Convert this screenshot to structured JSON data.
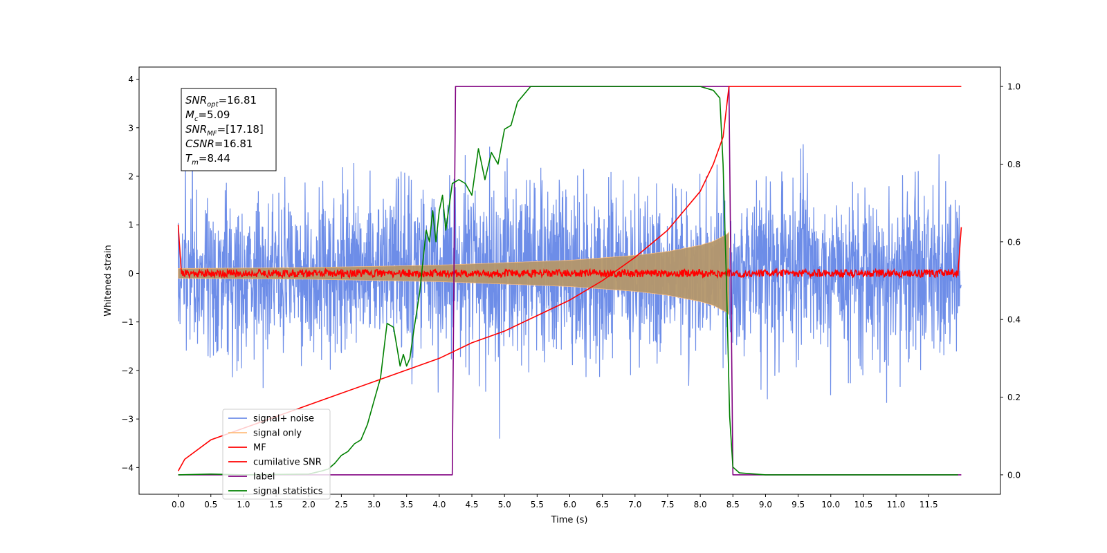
{
  "chart_data": {
    "type": "line",
    "xlabel": "Time (s)",
    "ylabel": "Whitened strain",
    "xlim": [
      -0.6,
      12.6
    ],
    "ylim": [
      -4.55,
      4.25
    ],
    "y2lim": [
      -0.05,
      1.05
    ],
    "x_ticks": [
      0.0,
      0.5,
      1.0,
      1.5,
      2.0,
      2.5,
      3.0,
      3.5,
      4.0,
      4.5,
      5.0,
      5.5,
      6.0,
      6.5,
      7.0,
      7.5,
      8.0,
      8.5,
      9.0,
      9.5,
      10.0,
      10.5,
      11.0,
      11.5
    ],
    "x_tick_labels": [
      "0.0",
      "0.5",
      "1.0",
      "1.5",
      "2.0",
      "2.5",
      "3.0",
      "3.5",
      "4.0",
      "4.5",
      "5.0",
      "5.5",
      "6.0",
      "6.5",
      "7.0",
      "7.5",
      "8.0",
      "8.5",
      "9.0",
      "9.5",
      "10.0",
      "10.5",
      "11.0",
      "11.5"
    ],
    "y_ticks": [
      4,
      3,
      2,
      1,
      0,
      -1,
      -2,
      -3,
      -4
    ],
    "y_tick_labels": [
      "4",
      "3",
      "2",
      "1",
      "0",
      "−1",
      "−2",
      "−3",
      "−4"
    ],
    "y2_ticks": [
      1.0,
      0.8,
      0.6,
      0.4,
      0.2,
      0.0
    ],
    "y2_tick_labels": [
      "1.0",
      "0.8",
      "0.6",
      "0.4",
      "0.2",
      "0.0"
    ],
    "grid": false,
    "legend_position": "lower-left",
    "annotation_lines": [
      {
        "sym": "SNR",
        "sub": "opt",
        "rest": "=16.81"
      },
      {
        "sym": "M",
        "sub": "c",
        "rest": "=5.09"
      },
      {
        "sym": "SNR",
        "sub": "MF",
        "rest": "=[17.18]"
      },
      {
        "sym": "CSNR",
        "sub": "",
        "rest": "=16.81"
      },
      {
        "sym": "T",
        "sub": "m",
        "rest": "=8.44"
      }
    ],
    "series": [
      {
        "name": "signal+ noise",
        "color": "#6d8de8",
        "axis": "left",
        "noise_amplitude": 1.6,
        "t_range": [
          0.0,
          12.0
        ]
      },
      {
        "name": "signal only",
        "color": "#ffbe7f",
        "axis": "left",
        "envelope": [
          [
            0.0,
            0.1
          ],
          [
            2.0,
            0.12
          ],
          [
            4.0,
            0.17
          ],
          [
            6.0,
            0.27
          ],
          [
            7.0,
            0.37
          ],
          [
            7.5,
            0.45
          ],
          [
            8.0,
            0.58
          ],
          [
            8.2,
            0.66
          ],
          [
            8.4,
            0.8
          ],
          [
            8.44,
            0.85
          ]
        ]
      },
      {
        "name": "MF",
        "color": "#ff0000",
        "axis": "left",
        "baseline": 0.0,
        "ripple": 0.08,
        "start_value": 1.0,
        "end_value": 0.95,
        "t_range": [
          0.0,
          12.0
        ]
      },
      {
        "name": "cumilative SNR",
        "color": "#ff0000",
        "axis": "right",
        "points": [
          [
            0.0,
            0.01
          ],
          [
            0.1,
            0.04
          ],
          [
            0.5,
            0.09
          ],
          [
            1.0,
            0.12
          ],
          [
            1.5,
            0.15
          ],
          [
            2.0,
            0.18
          ],
          [
            2.5,
            0.21
          ],
          [
            3.0,
            0.24
          ],
          [
            3.5,
            0.27
          ],
          [
            4.0,
            0.3
          ],
          [
            4.5,
            0.34
          ],
          [
            5.0,
            0.37
          ],
          [
            5.5,
            0.41
          ],
          [
            6.0,
            0.45
          ],
          [
            6.5,
            0.5
          ],
          [
            7.0,
            0.56
          ],
          [
            7.5,
            0.63
          ],
          [
            8.0,
            0.73
          ],
          [
            8.2,
            0.8
          ],
          [
            8.35,
            0.87
          ],
          [
            8.44,
            1.0
          ],
          [
            12.0,
            1.0
          ]
        ]
      },
      {
        "name": "label",
        "color": "#800080",
        "axis": "right",
        "points": [
          [
            0.0,
            0.0
          ],
          [
            4.2,
            0.0
          ],
          [
            4.25,
            1.0
          ],
          [
            8.44,
            1.0
          ],
          [
            8.5,
            0.0
          ],
          [
            12.0,
            0.0
          ]
        ]
      },
      {
        "name": "signal statistics",
        "color": "#008000",
        "axis": "right",
        "points": [
          [
            0.0,
            0.0
          ],
          [
            0.5,
            0.002
          ],
          [
            1.0,
            0.0
          ],
          [
            1.5,
            0.001
          ],
          [
            2.0,
            0.002
          ],
          [
            2.2,
            0.01
          ],
          [
            2.3,
            0.015
          ],
          [
            2.4,
            0.03
          ],
          [
            2.5,
            0.05
          ],
          [
            2.6,
            0.06
          ],
          [
            2.7,
            0.08
          ],
          [
            2.8,
            0.09
          ],
          [
            2.9,
            0.13
          ],
          [
            3.0,
            0.19
          ],
          [
            3.1,
            0.25
          ],
          [
            3.2,
            0.39
          ],
          [
            3.3,
            0.38
          ],
          [
            3.35,
            0.33
          ],
          [
            3.4,
            0.28
          ],
          [
            3.45,
            0.31
          ],
          [
            3.5,
            0.28
          ],
          [
            3.55,
            0.3
          ],
          [
            3.6,
            0.36
          ],
          [
            3.7,
            0.47
          ],
          [
            3.8,
            0.63
          ],
          [
            3.85,
            0.6
          ],
          [
            3.9,
            0.68
          ],
          [
            3.95,
            0.6
          ],
          [
            4.0,
            0.68
          ],
          [
            4.05,
            0.72
          ],
          [
            4.1,
            0.63
          ],
          [
            4.2,
            0.75
          ],
          [
            4.3,
            0.76
          ],
          [
            4.4,
            0.75
          ],
          [
            4.5,
            0.72
          ],
          [
            4.6,
            0.84
          ],
          [
            4.7,
            0.76
          ],
          [
            4.8,
            0.83
          ],
          [
            4.9,
            0.8
          ],
          [
            5.0,
            0.89
          ],
          [
            5.1,
            0.9
          ],
          [
            5.2,
            0.96
          ],
          [
            5.3,
            0.98
          ],
          [
            5.4,
            1.0
          ],
          [
            6.0,
            1.0
          ],
          [
            7.0,
            1.0
          ],
          [
            8.0,
            1.0
          ],
          [
            8.2,
            0.99
          ],
          [
            8.3,
            0.97
          ],
          [
            8.35,
            0.8
          ],
          [
            8.4,
            0.5
          ],
          [
            8.45,
            0.15
          ],
          [
            8.5,
            0.02
          ],
          [
            8.6,
            0.005
          ],
          [
            9.0,
            0.0
          ],
          [
            11.95,
            0.0
          ]
        ]
      }
    ]
  }
}
